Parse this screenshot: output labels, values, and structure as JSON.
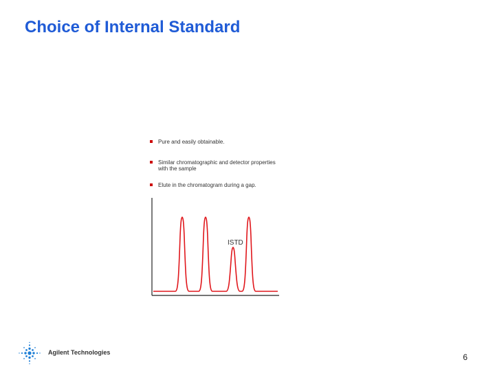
{
  "slide": {
    "title": "Choice of Internal Standard",
    "page_number": "6"
  },
  "figure": {
    "bullets": [
      {
        "text": "Pure and easily obtainable."
      },
      {
        "text": "Similar chromatographic and detector properties with the sample"
      },
      {
        "text": "Elute in the chromatogram during a gap."
      }
    ],
    "peak_label": "ISTD",
    "peak_color": "#e0161b",
    "bullet_color": "#cc0000"
  },
  "logo": {
    "text": "Agilent Technologies",
    "icon": "agilent-spark-icon",
    "color": "#1f7fd6"
  }
}
